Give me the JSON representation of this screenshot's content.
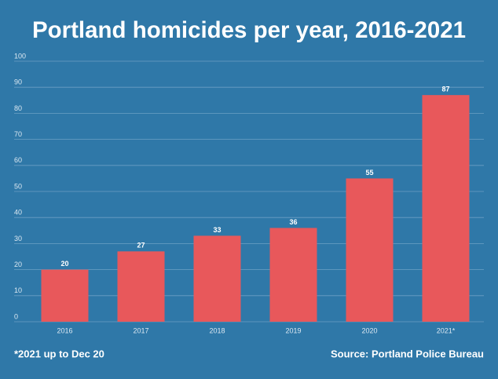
{
  "chart_data": {
    "type": "bar",
    "title": "Portland homicides per year, 2016-2021",
    "categories": [
      "2016",
      "2017",
      "2018",
      "2019",
      "2020",
      "2021*"
    ],
    "values": [
      20,
      27,
      33,
      36,
      55,
      87
    ],
    "color": "#e8585b",
    "ylim": [
      0,
      100
    ],
    "yticks": [
      0,
      10,
      20,
      30,
      40,
      50,
      60,
      70,
      80,
      90,
      100
    ],
    "grid": true,
    "note": "*2021 up to Dec 20",
    "source": "Source: Portland Police Bureau"
  }
}
